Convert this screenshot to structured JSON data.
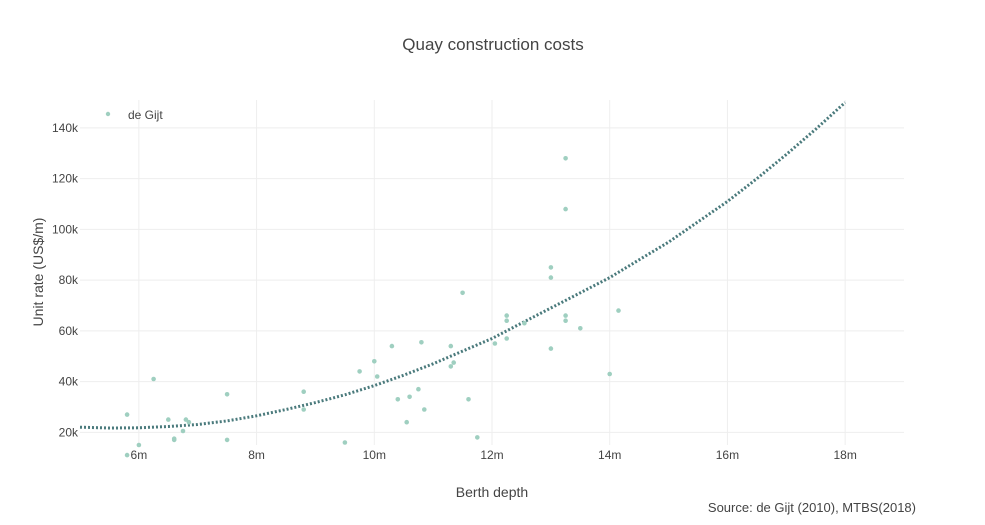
{
  "chart_data": {
    "type": "scatter",
    "title": "Quay construction costs",
    "xlabel": "Berth depth",
    "ylabel": "Unit rate (US$/m)",
    "source": "Source: de Gijt (2010), MTBS(2018)",
    "xlim": [
      5,
      19
    ],
    "ylim": [
      15000,
      151000
    ],
    "x_ticks": [
      6,
      8,
      10,
      12,
      14,
      16,
      18
    ],
    "x_tick_labels": [
      "6m",
      "8m",
      "10m",
      "12m",
      "14m",
      "16m",
      "18m"
    ],
    "y_ticks": [
      20000,
      40000,
      60000,
      80000,
      100000,
      120000,
      140000
    ],
    "y_tick_labels": [
      "20k",
      "40k",
      "60k",
      "80k",
      "100k",
      "120k",
      "140k"
    ],
    "grid": true,
    "legend_position": "top-left",
    "colors": {
      "points": "#9fcfc0",
      "trend": "#4a7a7c",
      "grid": "#eeeeee"
    },
    "series": [
      {
        "name": "de Gijt",
        "kind": "points",
        "points": [
          [
            5.8,
            27000
          ],
          [
            5.8,
            11000
          ],
          [
            6.0,
            15000
          ],
          [
            6.25,
            41000
          ],
          [
            6.5,
            25000
          ],
          [
            6.6,
            17000
          ],
          [
            6.6,
            17500
          ],
          [
            6.75,
            20500
          ],
          [
            6.8,
            25000
          ],
          [
            6.85,
            24000
          ],
          [
            7.5,
            35000
          ],
          [
            7.5,
            17000
          ],
          [
            8.8,
            36000
          ],
          [
            8.8,
            29000
          ],
          [
            9.5,
            16000
          ],
          [
            9.75,
            44000
          ],
          [
            10.0,
            48000
          ],
          [
            10.05,
            42000
          ],
          [
            10.3,
            54000
          ],
          [
            10.4,
            33000
          ],
          [
            10.55,
            24000
          ],
          [
            10.6,
            34000
          ],
          [
            10.75,
            37000
          ],
          [
            10.8,
            55500
          ],
          [
            10.85,
            29000
          ],
          [
            11.3,
            54000
          ],
          [
            11.3,
            46000
          ],
          [
            11.35,
            47500
          ],
          [
            11.5,
            75000
          ],
          [
            11.6,
            33000
          ],
          [
            11.75,
            18000
          ],
          [
            12.05,
            55000
          ],
          [
            12.25,
            66000
          ],
          [
            12.25,
            64000
          ],
          [
            12.25,
            57000
          ],
          [
            12.55,
            63000
          ],
          [
            13.0,
            85000
          ],
          [
            13.0,
            81000
          ],
          [
            13.0,
            53000
          ],
          [
            13.25,
            128000
          ],
          [
            13.25,
            108000
          ],
          [
            13.25,
            66000
          ],
          [
            13.25,
            64000
          ],
          [
            13.5,
            61000
          ],
          [
            14.0,
            43000
          ],
          [
            14.15,
            68000
          ]
        ]
      },
      {
        "name": "",
        "kind": "trend",
        "points": [
          [
            5.0,
            22000
          ],
          [
            5.5,
            21700
          ],
          [
            6.0,
            21800
          ],
          [
            6.5,
            22300
          ],
          [
            7.0,
            23100
          ],
          [
            7.5,
            24500
          ],
          [
            8.0,
            26500
          ],
          [
            8.5,
            29000
          ],
          [
            9.0,
            31700
          ],
          [
            9.5,
            34800
          ],
          [
            10.0,
            38400
          ],
          [
            10.5,
            42500
          ],
          [
            11.0,
            47000
          ],
          [
            11.5,
            52000
          ],
          [
            12.0,
            57000
          ],
          [
            12.5,
            63000
          ],
          [
            13.0,
            69000
          ],
          [
            13.5,
            75000
          ],
          [
            14.0,
            81000
          ],
          [
            14.5,
            88000
          ],
          [
            15.0,
            95000
          ],
          [
            15.5,
            103000
          ],
          [
            16.0,
            111000
          ],
          [
            16.5,
            120000
          ],
          [
            17.0,
            129500
          ],
          [
            17.5,
            139500
          ],
          [
            18.0,
            150000
          ]
        ]
      }
    ]
  }
}
